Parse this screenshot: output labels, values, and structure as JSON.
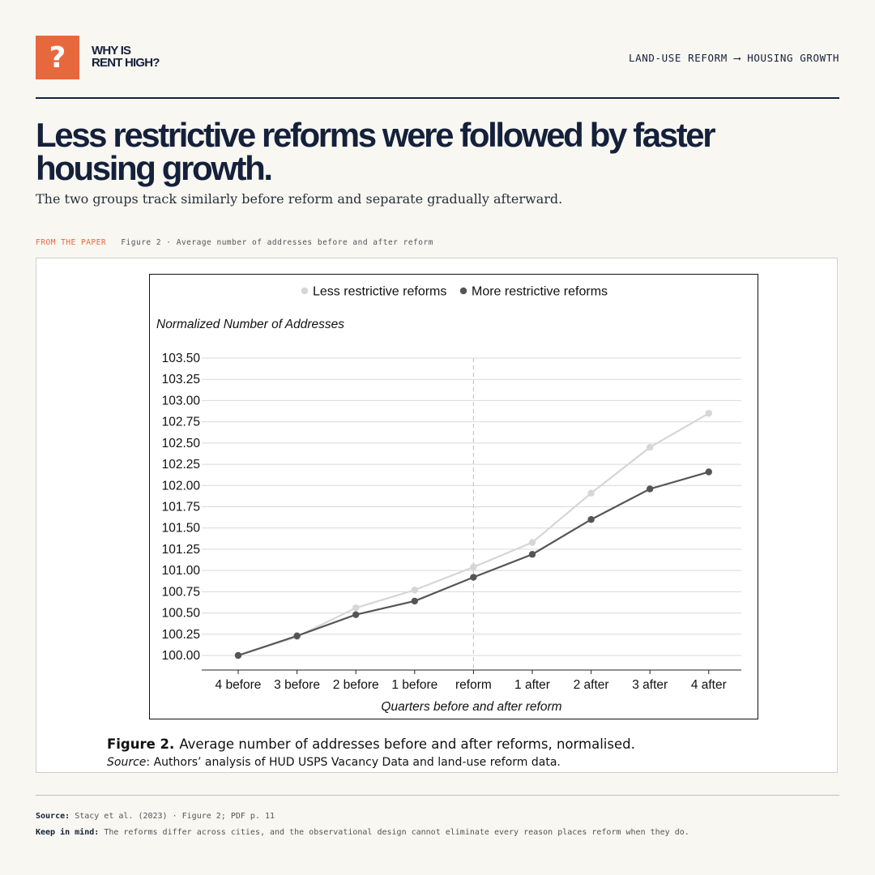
{
  "brand": {
    "icon": "question-mark-icon",
    "icon_glyph": "?",
    "line1": "WHY IS",
    "line2": "RENT HIGH?",
    "accent_color": "#e8683e"
  },
  "topic": "LAND-USE REFORM ⟶ HOUSING GROWTH",
  "headline": "Less restrictive reforms were followed by faster housing growth.",
  "subtitle": "The two groups track similarly before reform and separate gradually afterward.",
  "from_paper": {
    "kicker": "FROM THE PAPER",
    "figure_ref": "Figure 2 · Average number of addresses before and after reform"
  },
  "figure": {
    "caption_label": "Figure 2.",
    "caption_text": "Average number of addresses before and after reforms, normalised.",
    "source_label": "Source",
    "source_text": ": Authors’ analysis of HUD USPS Vacancy Data and land-use reform data."
  },
  "footer": {
    "source_label": "Source:",
    "source_text": "Stacy et al. (2023) · Figure 2; PDF p. 11",
    "keep_label": "Keep in mind:",
    "keep_text": "The reforms differ across cities, and the observational design cannot eliminate every reason places reform when they do."
  },
  "chart_data": {
    "type": "line",
    "title": "",
    "xlabel": "Quarters before and after reform",
    "ylabel": "Normalized Number of Addresses",
    "categories": [
      "4 before",
      "3 before",
      "2 before",
      "1 before",
      "reform",
      "1 after",
      "2 after",
      "3 after",
      "4 after"
    ],
    "yticks": [
      "100.00",
      "100.25",
      "100.50",
      "100.75",
      "101.00",
      "101.25",
      "101.50",
      "101.75",
      "102.00",
      "102.25",
      "102.50",
      "102.75",
      "103.00",
      "103.25",
      "103.50"
    ],
    "ylim": [
      100.0,
      103.5
    ],
    "grid": true,
    "legend_position": "top-center",
    "reference_line": "reform",
    "series": [
      {
        "name": "Less restrictive reforms",
        "color": "#d6d6d6",
        "values": [
          100.0,
          100.22,
          100.56,
          100.77,
          101.04,
          101.33,
          101.91,
          102.45,
          102.85
        ]
      },
      {
        "name": "More restrictive reforms",
        "color": "#555555",
        "values": [
          100.0,
          100.23,
          100.48,
          100.64,
          100.92,
          101.19,
          101.6,
          101.96,
          102.16
        ]
      }
    ]
  }
}
